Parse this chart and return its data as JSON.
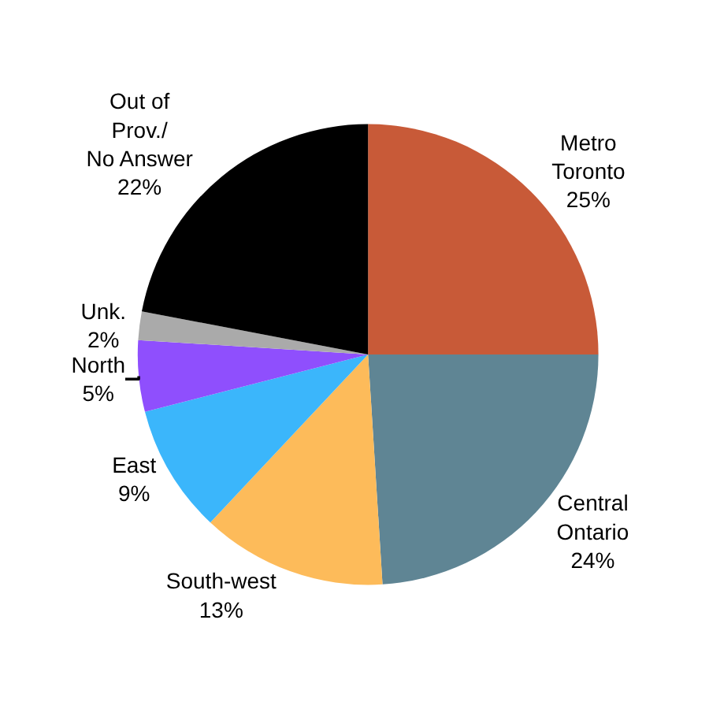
{
  "chart_data": {
    "type": "pie",
    "categories": [
      "Metro Toronto",
      "Central Ontario",
      "South-west",
      "East",
      "North",
      "Unk.",
      "Out of Prov./ No Answer"
    ],
    "values": [
      25,
      24,
      13,
      9,
      5,
      2,
      22
    ],
    "value_labels": [
      "25%",
      "24%",
      "13%",
      "9%",
      "5%",
      "2%",
      "22%"
    ],
    "colors": [
      "#c85a38",
      "#5f8594",
      "#fdbb5a",
      "#3bb6fb",
      "#8f4ffd",
      "#aaaaaa",
      "#000000"
    ],
    "legend": false
  }
}
